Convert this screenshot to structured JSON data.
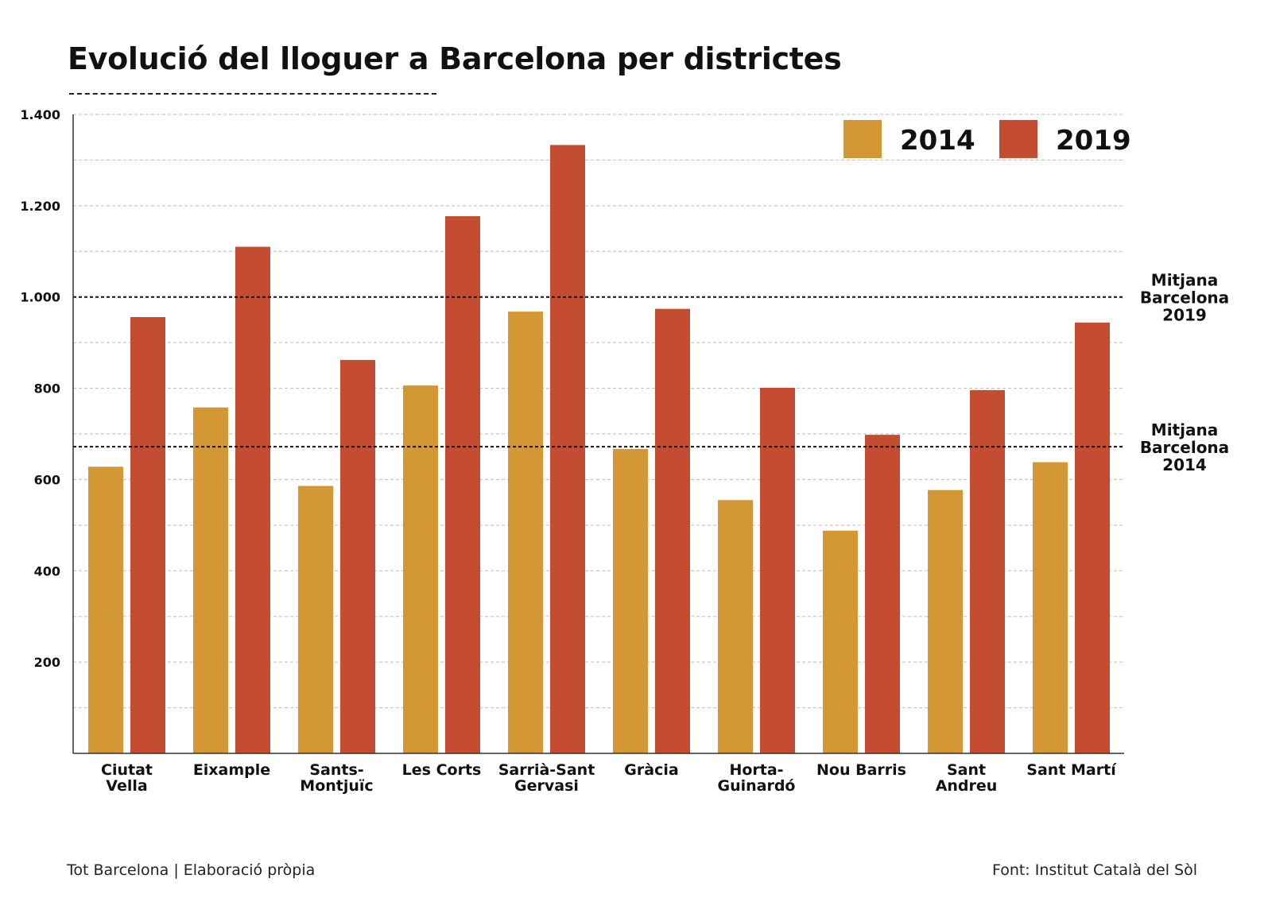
{
  "chart_data": {
    "type": "bar",
    "title": "Evolució del lloguer a Barcelona per districtes",
    "xlabel": "",
    "ylabel": "",
    "ylim": [
      0,
      1400
    ],
    "y_ticks": [
      200,
      400,
      600,
      800,
      1000,
      1200,
      1400
    ],
    "y_tick_labels": [
      "200",
      "400",
      "600",
      "800",
      "1.000",
      "1.200",
      "1.400"
    ],
    "grid": true,
    "legend_position": "top-right",
    "categories": [
      "Ciutat Vella",
      "Eixample",
      "Sants-Montjuïc",
      "Les Corts",
      "Sarrià-Sant Gervasi",
      "Gràcia",
      "Horta-Guinardó",
      "Nou Barris",
      "Sant Andreu",
      "Sant Martí"
    ],
    "category_label_lines": [
      [
        "Ciutat",
        "Vella"
      ],
      [
        "Eixample"
      ],
      [
        "Sants-",
        "Montjuïc"
      ],
      [
        "Les Corts"
      ],
      [
        "Sarrià-Sant",
        "Gervasi"
      ],
      [
        "Gràcia"
      ],
      [
        "Horta-",
        "Guinardó"
      ],
      [
        "Nou Barris"
      ],
      [
        "Sant",
        "Andreu"
      ],
      [
        "Sant Martí"
      ]
    ],
    "series": [
      {
        "name": "2014",
        "color": "#d39833",
        "values": [
          628,
          758,
          586,
          806,
          968,
          667,
          555,
          488,
          577,
          638
        ]
      },
      {
        "name": "2019",
        "color": "#c44c31",
        "values": [
          956,
          1110,
          862,
          1177,
          1333,
          974,
          801,
          698,
          796,
          944
        ]
      }
    ],
    "reference_lines": [
      {
        "value": 1000,
        "label_lines": [
          "Mitjana",
          "Barcelona",
          "2019"
        ]
      },
      {
        "value": 672,
        "label_lines": [
          "Mitjana",
          "Barcelona",
          "2014"
        ]
      }
    ]
  },
  "footer": {
    "credit": "Tot Barcelona | Elaboració pròpia",
    "source": "Font: Institut Català del Sòl"
  }
}
